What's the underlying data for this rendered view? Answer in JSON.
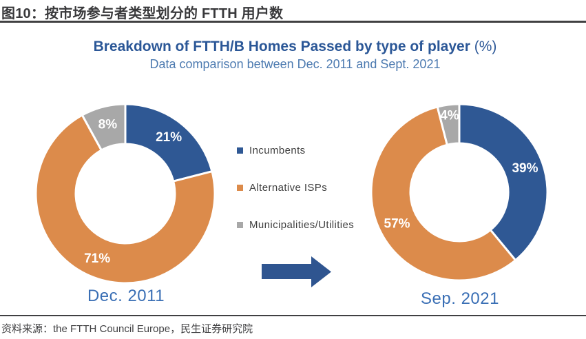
{
  "header": {
    "title": "图10：按市场参与者类型划分的 FTTH 用户数"
  },
  "footer": {
    "source": "资料来源：the FTTH Council Europe，民生证券研究院"
  },
  "colors": {
    "incumbents": "#2F5894",
    "alternative_isps": "#DC8B4B",
    "municipalities_utilities": "#A8A8A8",
    "figure_title": "#2B5797",
    "figure_subtitle": "#4C7AB0",
    "period_label": "#3A6FB5",
    "arrow": "#2F5590",
    "data_label": "#FFFFFF",
    "rule": "#404042",
    "header_text": "#39393B"
  },
  "chart_data": {
    "type": "pie",
    "variant": "double-donut-comparison",
    "title": "Breakdown of FTTH/B Homes Passed by type of player",
    "title_unit": "(%)",
    "subtitle": "Data comparison between Dec. 2011 and Sept. 2021",
    "legend_position": "center-between-donuts",
    "donut_hole_ratio": 0.55,
    "legend": [
      {
        "label": "Incumbents",
        "color": "#2F5894"
      },
      {
        "label": "Alternative ISPs",
        "color": "#DC8B4B"
      },
      {
        "label": "Municipalities/Utilities",
        "color": "#A8A8A8"
      }
    ],
    "donuts": [
      {
        "label": "Dec. 2011",
        "values": [
          21,
          71,
          8
        ],
        "data_labels": [
          "21%",
          "71%",
          "8%"
        ]
      },
      {
        "label": "Sep. 2021",
        "values": [
          39,
          57,
          4
        ],
        "data_labels": [
          "39%",
          "57%",
          "4%"
        ]
      }
    ]
  }
}
